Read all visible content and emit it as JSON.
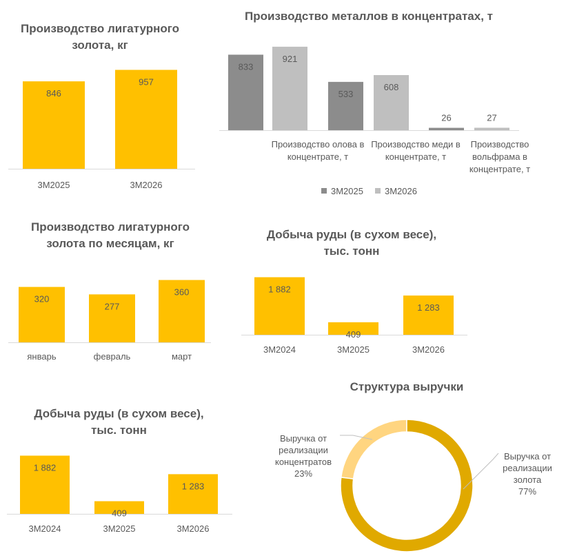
{
  "colors": {
    "gold": "#FFC000",
    "dark_gray": "#8C8C8C",
    "light_gray": "#BFBFBF",
    "donut_dark": "#E0A900",
    "donut_light": "#FFD580",
    "axis": "#D9D9D9",
    "text": "#595959"
  },
  "chart_data": [
    {
      "id": "ligature-gold",
      "type": "bar",
      "title": "Производство лигатурного золота, кг",
      "title_lines": [
        "Производство лигатурного",
        "золота, кг"
      ],
      "categories": [
        "3М2025",
        "3М2026"
      ],
      "values": [
        846,
        957
      ],
      "value_labels": [
        "846",
        "957"
      ],
      "ylim": [
        0,
        1000
      ]
    },
    {
      "id": "metals-in-concentrates",
      "type": "bar",
      "title": "Производство металлов в концентратах, т",
      "title_lines": [
        "Производство металлов в концентратах, т"
      ],
      "categories": [
        "Производство олова в концентрате, т",
        "Производство меди в концентрате, т",
        "Производство вольфрама в концентрате, т"
      ],
      "category_lines": [
        [
          "Производство олова в",
          "концентрате, т"
        ],
        [
          "Производство меди в",
          "концентрате, т"
        ],
        [
          "Производство",
          "вольфрама в",
          "концентрате, т"
        ]
      ],
      "series": [
        {
          "name": "3М2025",
          "values": [
            833,
            533,
            26
          ],
          "value_labels": [
            "833",
            "533",
            "26"
          ]
        },
        {
          "name": "3М2026",
          "values": [
            921,
            608,
            27
          ],
          "value_labels": [
            "921",
            "608",
            "27"
          ]
        }
      ],
      "legend": "bottom",
      "ylim": [
        0,
        950
      ]
    },
    {
      "id": "ligature-gold-monthly",
      "type": "bar",
      "title": "Производство лигатурного золота по месяцам, кг",
      "title_lines": [
        "Производство лигатурного",
        "золота по месяцам, кг"
      ],
      "categories": [
        "январь",
        "февраль",
        "март"
      ],
      "values": [
        320,
        277,
        360
      ],
      "value_labels": [
        "320",
        "277",
        "360"
      ],
      "ylim": [
        0,
        370
      ]
    },
    {
      "id": "ore-mining-right",
      "type": "bar",
      "title": "Добыча руды (в сухом весе), тыс. тонн",
      "title_lines": [
        "Добыча руды (в сухом весе),",
        "тыс. тонн"
      ],
      "categories": [
        "3М2024",
        "3М2025",
        "3М2026"
      ],
      "values": [
        1882,
        409,
        1283
      ],
      "value_labels": [
        "1 882",
        "409",
        "1 283"
      ],
      "ylim": [
        0,
        1960
      ]
    },
    {
      "id": "revenue-structure",
      "type": "pie",
      "title": "Структура выручки",
      "title_lines": [
        "Структура выручки"
      ],
      "labels": [
        "Выручка от реализации концентратов",
        "Выручка от реализации золота"
      ],
      "values": [
        23,
        77
      ],
      "label_lines": [
        [
          "Выручка от",
          "реализации",
          "концентратов",
          "23%"
        ],
        [
          "Выручка от",
          "реализации",
          "золота",
          "77%"
        ]
      ]
    },
    {
      "id": "ore-mining-left",
      "type": "bar",
      "title": "Добыча руды (в сухом весе), тыс. тонн",
      "title_lines": [
        "Добыча руды (в сухом весе),",
        "тыс. тонн"
      ],
      "categories": [
        "3М2024",
        "3М2025",
        "3М2026"
      ],
      "values": [
        1882,
        409,
        1283
      ],
      "value_labels": [
        "1 882",
        "409",
        "1 283"
      ],
      "ylim": [
        0,
        1960
      ]
    }
  ]
}
